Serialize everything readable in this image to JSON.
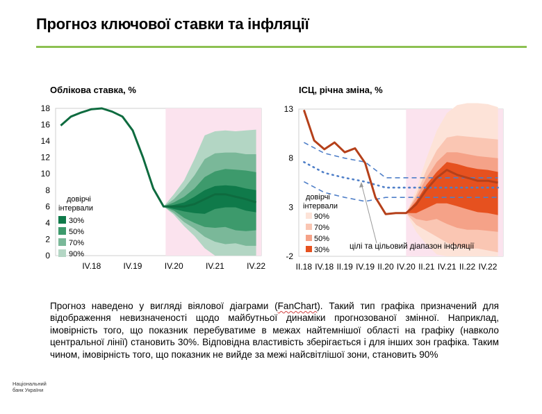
{
  "page": {
    "title": "Прогноз ключової ставки та інфляції",
    "description_before": "Прогноз наведено у вигляді віялової діаграми (",
    "description_fanchart": "FanChart",
    "description_after": "). Такий тип графіка призначений для відображення невизначеності щодо майбутньої динаміки прогнозованої змінної. Наприклад, імовірність того, що показник перебуватиме в межах найтемнішої області на графіку (навколо центральної лінії) становить 30%. Відповідна властивість зберігається і для інших зон графіка. Таким чином, імовірність того, що показник не вийде за межі найсвітлішої зони, становить 90%",
    "logo_line1": "Національний",
    "logo_line2": "банк України"
  },
  "colors": {
    "accent_rule": "#8cc051",
    "forecast_shade": "#fbe3ee",
    "rate_line": "#0e6b3f",
    "rate_bands": [
      "#0f7a4a",
      "#3d9a6c",
      "#7ab899",
      "#b3d6c4"
    ],
    "cpi_line": "#b5401a",
    "cpi_bands": [
      "#e6511f",
      "#f5a288",
      "#fac6b3",
      "#fde3d8"
    ],
    "target": "#4f7fc8"
  },
  "chart_data": [
    {
      "type": "area",
      "id": "rate",
      "title": "Облікова ставка, %",
      "ylim": [
        0,
        18
      ],
      "yticks": [
        0,
        2,
        4,
        6,
        8,
        10,
        12,
        14,
        16,
        18
      ],
      "xlim": [
        0,
        20
      ],
      "xticks": [
        {
          "x": 3.5,
          "label": "IV.18"
        },
        {
          "x": 7.5,
          "label": "IV.19"
        },
        {
          "x": 11.5,
          "label": "IV.20"
        },
        {
          "x": 15.5,
          "label": "IV.21"
        },
        {
          "x": 19.5,
          "label": "IV.22"
        }
      ],
      "forecast_start": 10.7,
      "central": {
        "x": [
          0.5,
          1.5,
          2.5,
          3.5,
          4.5,
          5.5,
          6.5,
          7.5,
          8.5,
          9.5,
          10.5,
          11.5,
          12.5,
          13.5,
          14.5,
          15.5,
          16.5,
          17.5,
          18.5,
          19.5
        ],
        "y": [
          15.9,
          17.0,
          17.5,
          17.9,
          18.0,
          17.6,
          17.0,
          15.3,
          12.0,
          8.2,
          6.0,
          6.0,
          6.0,
          6.3,
          6.9,
          7.5,
          7.5,
          7.2,
          6.9,
          6.5
        ]
      },
      "bands": {
        "x": [
          10.5,
          11.5,
          12.5,
          13.5,
          14.5,
          15.5,
          16.5,
          17.5,
          18.5,
          19.5
        ],
        "series": [
          {
            "name": "90%",
            "upper": [
              6.0,
              7.5,
              9.2,
              11.8,
              14.7,
              15.2,
              15.3,
              15.2,
              15.3,
              15.4
            ],
            "lower": [
              6.0,
              5.0,
              3.6,
              2.4,
              0.9,
              0.0,
              0.0,
              0.0,
              0.0,
              0.0
            ]
          },
          {
            "name": "70%",
            "upper": [
              6.0,
              6.9,
              8.2,
              9.8,
              11.8,
              12.5,
              12.6,
              12.6,
              12.4,
              12.4
            ],
            "lower": [
              6.0,
              5.2,
              4.1,
              3.3,
              2.3,
              1.7,
              1.4,
              1.5,
              1.2,
              1.2
            ]
          },
          {
            "name": "50%",
            "upper": [
              6.0,
              6.5,
              7.2,
              8.2,
              9.6,
              10.3,
              10.6,
              10.5,
              10.4,
              10.2
            ],
            "lower": [
              6.0,
              5.5,
              4.6,
              4.0,
              3.5,
              3.4,
              3.5,
              3.1,
              3.0,
              3.1
            ]
          },
          {
            "name": "30%",
            "upper": [
              6.0,
              6.2,
              6.5,
              7.2,
              8.0,
              8.5,
              8.6,
              8.5,
              8.2,
              8.0
            ],
            "lower": [
              6.0,
              5.7,
              5.4,
              5.2,
              5.1,
              5.7,
              5.9,
              5.9,
              5.5,
              5.3
            ]
          }
        ]
      },
      "legend": {
        "title_line1": "довірчі",
        "title_line2": "інтервали",
        "entries": [
          "30%",
          "50%",
          "70%",
          "90%"
        ]
      }
    },
    {
      "type": "area",
      "id": "cpi",
      "title": "ІСЦ, річна зміна, %",
      "ylim": [
        -2,
        13
      ],
      "yticks": [
        -2,
        3,
        8,
        13
      ],
      "xlim": [
        0,
        20
      ],
      "xticks": [
        {
          "x": 0.5,
          "label": "II.18"
        },
        {
          "x": 2.5,
          "label": "IV.18"
        },
        {
          "x": 4.5,
          "label": "II.19"
        },
        {
          "x": 6.5,
          "label": "IV.19"
        },
        {
          "x": 8.5,
          "label": "II.20"
        },
        {
          "x": 10.5,
          "label": "IV.20"
        },
        {
          "x": 12.5,
          "label": "II.21"
        },
        {
          "x": 14.5,
          "label": "IV.21"
        },
        {
          "x": 16.5,
          "label": "II.22"
        },
        {
          "x": 18.5,
          "label": "IV.22"
        }
      ],
      "forecast_start": 10.5,
      "central": {
        "x": [
          0.5,
          1.5,
          2.5,
          3.5,
          4.5,
          5.5,
          6.5,
          7.5,
          8.5,
          9.5,
          10.5,
          11.5,
          12.5,
          13.5,
          14.5,
          15.5,
          16.5,
          17.5,
          18.5,
          19.5
        ],
        "y": [
          12.9,
          9.8,
          8.9,
          9.6,
          8.6,
          9.0,
          7.5,
          4.0,
          2.3,
          2.4,
          2.4,
          3.3,
          4.8,
          6.0,
          6.8,
          6.3,
          6.0,
          5.7,
          5.7,
          5.5
        ]
      },
      "bands": {
        "x": [
          10.5,
          11.5,
          12.5,
          13.5,
          14.5,
          15.5,
          16.5,
          17.5,
          18.5,
          19.5
        ],
        "series": [
          {
            "name": "90%",
            "upper": [
              2.4,
              4.8,
              8.0,
              10.8,
              12.6,
              13.4,
              13.6,
              13.6,
              13.5,
              13.2
            ],
            "lower": [
              2.4,
              0.5,
              -0.8,
              -1.8,
              -2.0,
              -2.0,
              -2.0,
              -2.0,
              -2.0,
              -2.0
            ]
          },
          {
            "name": "70%",
            "upper": [
              2.4,
              4.3,
              6.8,
              8.8,
              10.1,
              10.3,
              10.2,
              10.1,
              10.0,
              9.9
            ],
            "lower": [
              2.4,
              1.2,
              0.6,
              0.0,
              -0.6,
              -1.0,
              -1.2,
              -1.2,
              -1.4,
              -1.6
            ]
          },
          {
            "name": "50%",
            "upper": [
              2.4,
              4.0,
              6.0,
              7.6,
              8.6,
              8.6,
              8.4,
              8.2,
              8.1,
              8.0
            ],
            "lower": [
              2.4,
              1.8,
              1.6,
              1.8,
              1.3,
              0.9,
              0.7,
              0.7,
              0.6,
              0.5
            ]
          },
          {
            "name": "30%",
            "upper": [
              2.4,
              3.6,
              5.3,
              6.6,
              7.6,
              7.4,
              7.1,
              6.9,
              6.8,
              6.6
            ],
            "lower": [
              2.4,
              2.4,
              2.9,
              3.4,
              3.4,
              3.1,
              2.8,
              2.5,
              2.4,
              2.2
            ]
          }
        ]
      },
      "target": {
        "x": [
          0.5,
          2.5,
          4.5,
          6.5,
          8.5,
          10.5,
          12.5,
          14.5,
          16.5,
          18.5,
          19.5
        ],
        "center": [
          7.6,
          6.5,
          6.0,
          5.6,
          5.0,
          5.0,
          5.0,
          5.0,
          5.0,
          5.0,
          5.0
        ],
        "upper": [
          9.6,
          8.5,
          8.0,
          7.6,
          6.0,
          6.0,
          6.0,
          6.0,
          6.0,
          6.0,
          6.0
        ],
        "lower": [
          5.6,
          4.5,
          4.0,
          3.6,
          4.0,
          4.0,
          4.0,
          4.0,
          4.0,
          4.0,
          4.0
        ]
      },
      "legend": {
        "title_line1": "довірчі",
        "title_line2": "інтервали",
        "entries": [
          "90%",
          "70%",
          "50%",
          "30%"
        ]
      },
      "annotation": "цілі та цільовий діапазон інфляції"
    }
  ]
}
